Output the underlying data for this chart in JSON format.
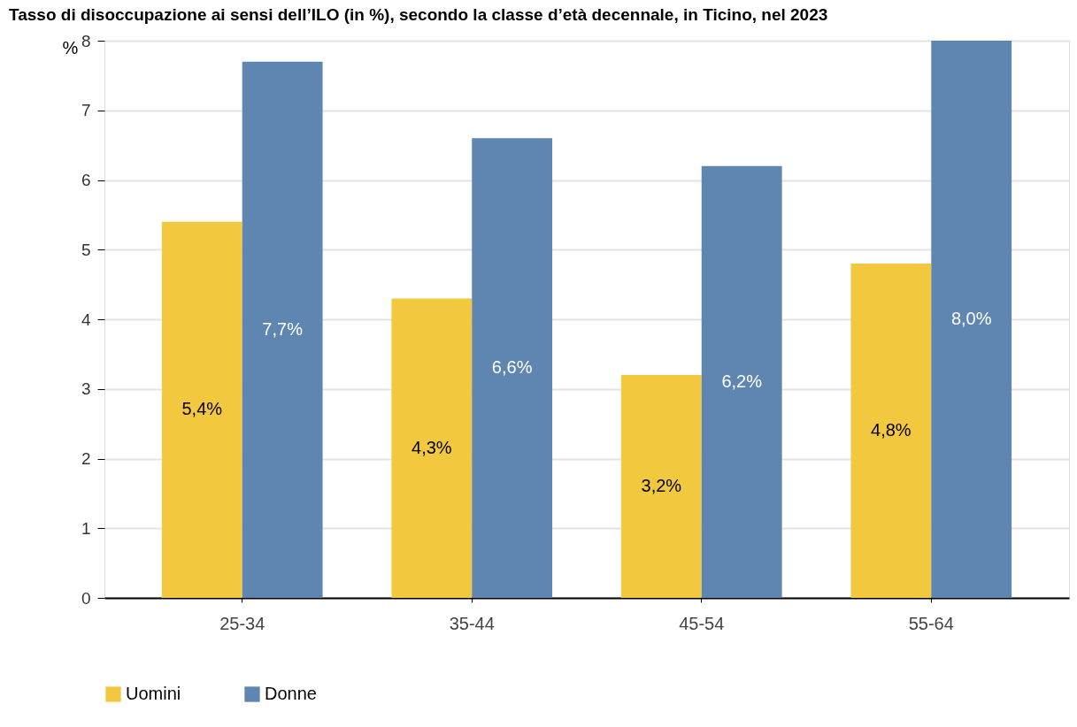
{
  "chart_data": {
    "type": "bar",
    "title": "Tasso di disoccupazione ai sensi dell’ILO (in %), secondo la classe d’età decennale, in Ticino, nel 2023",
    "ylabel": "%",
    "categories": [
      "25-34",
      "35-44",
      "45-54",
      "55-64"
    ],
    "series": [
      {
        "name": "Uomini",
        "color": "#f2c93e",
        "values": [
          5.4,
          4.3,
          3.2,
          4.8
        ],
        "value_labels": [
          "5,4%",
          "4,3%",
          "3,2%",
          "4,8%"
        ]
      },
      {
        "name": "Donne",
        "color": "#5f86b1",
        "values": [
          7.7,
          6.6,
          6.2,
          8.0
        ],
        "value_labels": [
          "7,7%",
          "6,6%",
          "6,2%",
          "8,0%"
        ]
      }
    ],
    "ylim": [
      0,
      8
    ],
    "yticks": [
      0,
      1,
      2,
      3,
      4,
      5,
      6,
      7,
      8
    ],
    "grid": "y",
    "legend": "bottom left"
  }
}
